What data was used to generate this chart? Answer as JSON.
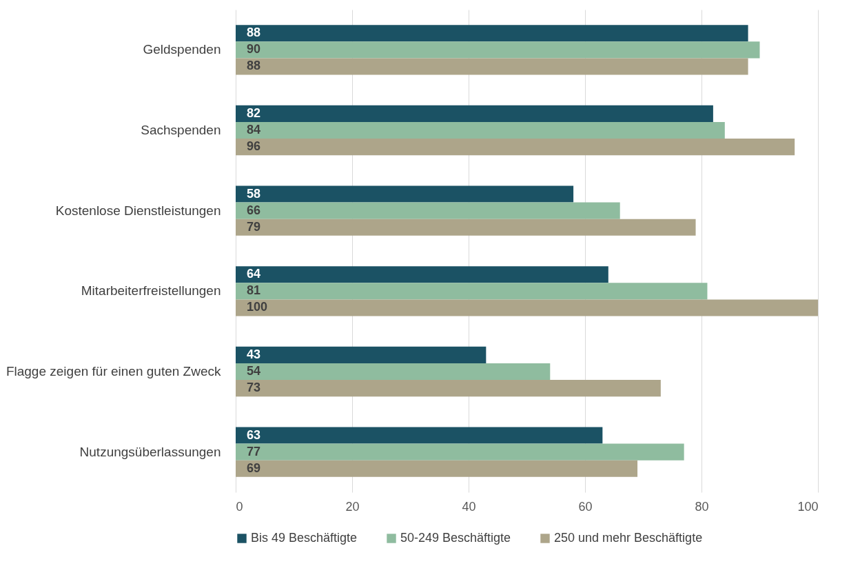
{
  "chart_data": {
    "type": "bar",
    "orientation": "horizontal",
    "categories": [
      "Geldspenden",
      "Sachspenden",
      "Kostenlose Dienstleistungen",
      "Mitarbeiterfreistellungen",
      "Flagge zeigen für einen guten Zweck",
      "Nutzungsüberlassungen"
    ],
    "series": [
      {
        "name": "Bis 49 Beschäftigte",
        "color": "#1b5264",
        "values": [
          88,
          82,
          58,
          64,
          43,
          63
        ]
      },
      {
        "name": "50-249 Beschäftigte",
        "color": "#8fbc9f",
        "values": [
          90,
          84,
          66,
          81,
          54,
          77
        ]
      },
      {
        "name": "250 und mehr Beschäftigte",
        "color": "#ada58a",
        "values": [
          88,
          96,
          79,
          100,
          73,
          69
        ]
      }
    ],
    "xlim": [
      0,
      100
    ],
    "xticks": [
      0,
      20,
      40,
      60,
      80,
      100
    ],
    "grid": "x",
    "legend": "bottom",
    "data_labels": true
  }
}
